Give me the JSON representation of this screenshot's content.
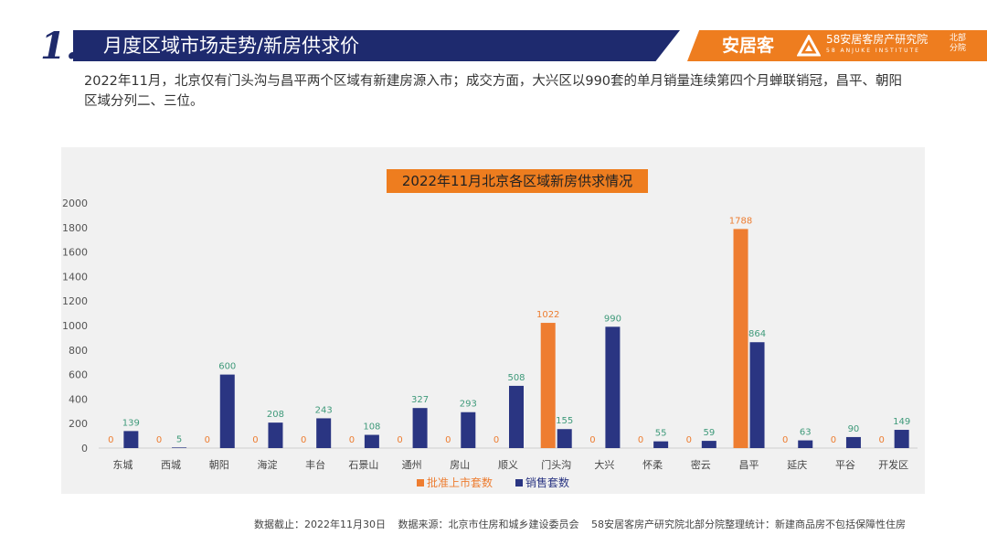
{
  "header": {
    "number": "1.",
    "title": "月度区域市场走势/新房供求价",
    "brand_name": "安居客",
    "institute_name": "58安居客房产研究院",
    "institute_en": "58 ANJUKE INSTITUTE",
    "institute_branch": "北部分院"
  },
  "intro_text": "2022年11月，北京仅有门头沟与昌平两个区域有新建房源入市；成交方面，大兴区以990套的单月销量连续第四个月蝉联销冠，昌平、朝阳区域分列二、三位。",
  "colors": {
    "navy": "#1e2a6e",
    "orange": "#ee7d1f",
    "supply_bar": "#ee7d31",
    "sales_bar": "#2a3582",
    "supply_label": "#ed7d31",
    "sales_label": "#3f9a7a"
  },
  "chart_data": {
    "type": "bar",
    "title": "2022年11月北京各区域新房供求情况",
    "categories": [
      "东城",
      "西城",
      "朝阳",
      "海淀",
      "丰台",
      "石景山",
      "通州",
      "房山",
      "顺义",
      "门头沟",
      "大兴",
      "怀柔",
      "密云",
      "昌平",
      "延庆",
      "平谷",
      "开发区"
    ],
    "series": [
      {
        "name": "批准上市套数",
        "values": [
          0,
          0,
          0,
          0,
          0,
          0,
          0,
          0,
          0,
          1022,
          0,
          0,
          0,
          1788,
          0,
          0,
          0
        ]
      },
      {
        "name": "销售套数",
        "values": [
          139,
          5,
          600,
          208,
          243,
          108,
          327,
          293,
          508,
          155,
          990,
          55,
          59,
          864,
          63,
          90,
          149
        ]
      }
    ],
    "ylim": [
      0,
      2000
    ],
    "yticks": [
      0,
      200,
      400,
      600,
      800,
      1000,
      1200,
      1400,
      1600,
      1800,
      2000
    ],
    "xlabel": "",
    "ylabel": "",
    "legend_position": "bottom"
  },
  "footer": {
    "cutoff": "数据截止：2022年11月30日",
    "source": "数据来源：北京市住房和城乡建设委员会",
    "note": "58安居客房产研究院北部分院整理统计：新建商品房不包括保障性住房"
  }
}
